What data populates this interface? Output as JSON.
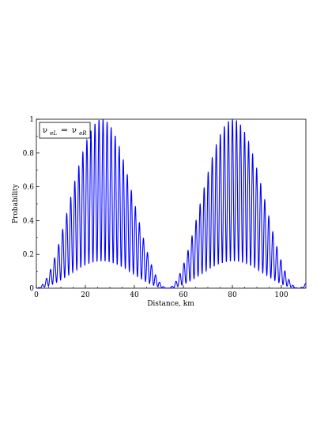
{
  "chart_data": {
    "type": "line",
    "title": "",
    "xlabel": "Distance, km",
    "ylabel": "Probability",
    "xlim": [
      0,
      110
    ],
    "ylim": [
      0,
      1
    ],
    "x_ticks": [
      0,
      20,
      40,
      60,
      80,
      100
    ],
    "y_ticks": [
      0,
      0.2,
      0.4,
      0.6,
      0.8,
      1
    ],
    "x_tick_labels": [
      "0",
      "20",
      "40",
      "60",
      "80",
      "100"
    ],
    "y_tick_labels": [
      "0",
      "0.2",
      "0.4",
      "0.6",
      "0.8",
      "1"
    ],
    "grid": false,
    "legend": {
      "placement": "top-left",
      "from": {
        "base": "ν",
        "sub": "eL"
      },
      "arrow": "⇒",
      "to": {
        "base": "ν",
        "sub": "eR"
      }
    },
    "series": [
      {
        "color": "#0000ff",
        "envelope_period_km": 53.5,
        "envelope_peaks_km": [
          27,
          81
        ],
        "envelope_peak_value": 1.0,
        "oscillation_period_km": 1.65,
        "oscillation_minimum_envelope_peak": 0.16,
        "description_of_curve": "fast oscillation between a lower envelope (peak ≈0.16) and an upper envelope (peak ≈1) that vary slowly with distance"
      }
    ]
  }
}
